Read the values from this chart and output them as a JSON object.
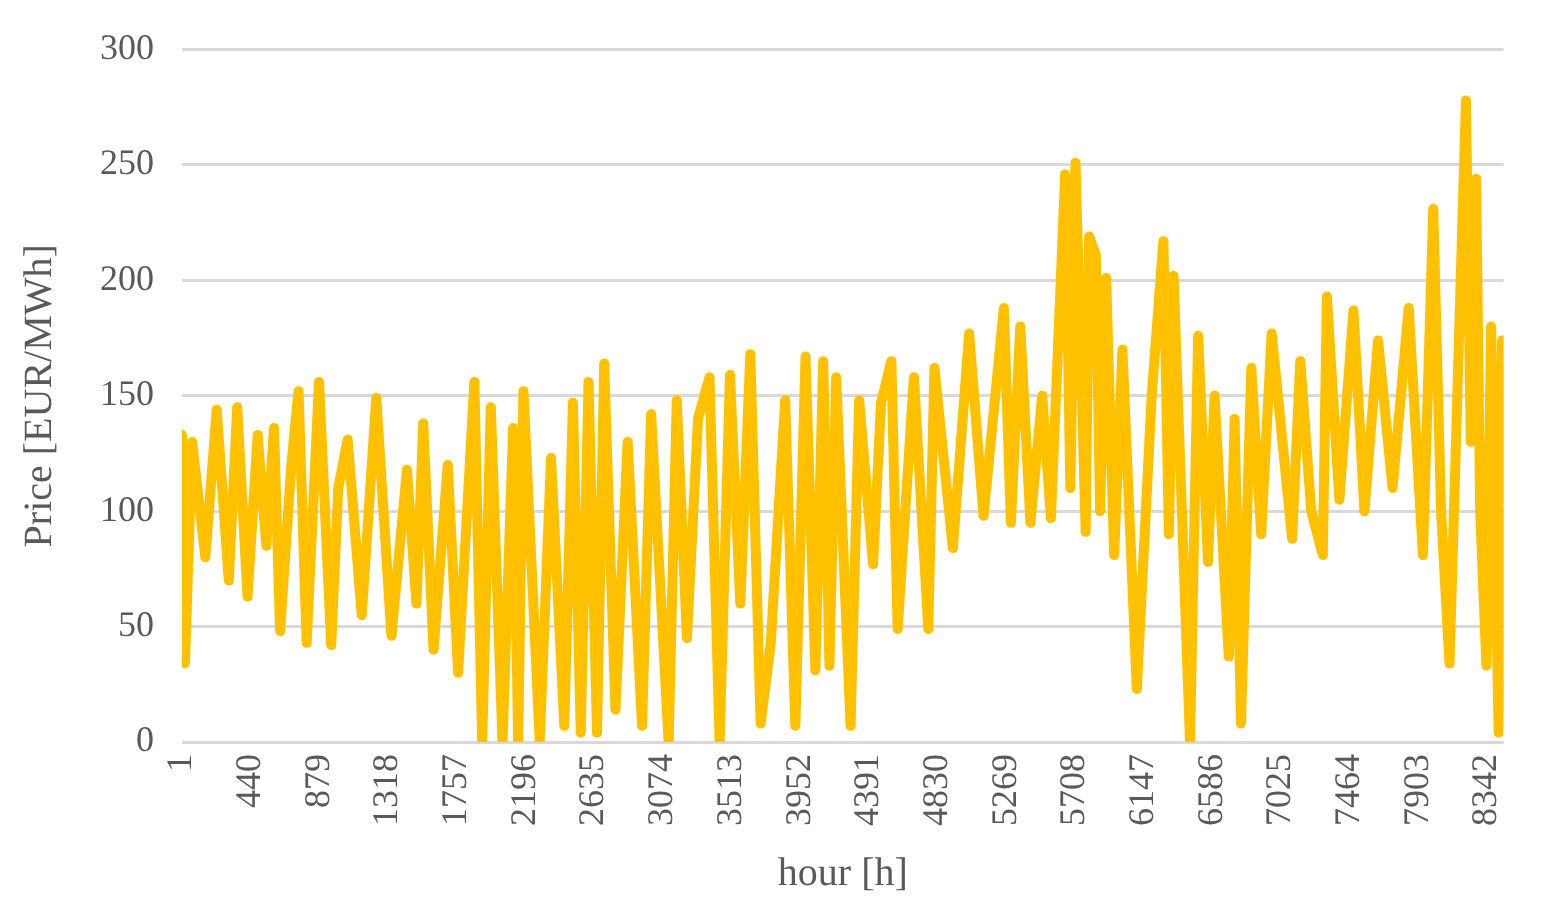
{
  "chart_data": {
    "type": "line",
    "xlabel": "hour [h]",
    "ylabel": "Price [EUR/MWh]",
    "xlim": [
      1,
      8450
    ],
    "xticks": [
      1,
      440,
      879,
      1318,
      1757,
      2196,
      2635,
      3074,
      3513,
      3952,
      4391,
      4830,
      5269,
      5708,
      6147,
      6586,
      7025,
      7464,
      7903,
      8342
    ],
    "ylim": [
      0,
      300
    ],
    "yticks": [
      0,
      50,
      100,
      150,
      200,
      250,
      300
    ],
    "grid": "y",
    "legend": false,
    "marker": "none",
    "line_style": "solid",
    "series": [
      {
        "color": "#ffc000",
        "x": [
          1,
          20,
          66,
          150,
          223,
          300,
          354,
          420,
          485,
          540,
          589,
          628,
          700,
          746,
          798,
          877,
          955,
          1000,
          1060,
          1150,
          1243,
          1340,
          1439,
          1500,
          1543,
          1609,
          1700,
          1766,
          1870,
          1920,
          1975,
          2050,
          2118,
          2150,
          2184,
          2288,
          2360,
          2445,
          2500,
          2550,
          2600,
          2654,
          2700,
          2772,
          2850,
          2942,
          3000,
          3112,
          3164,
          3229,
          3300,
          3373,
          3438,
          3504,
          3570,
          3634,
          3700,
          3765,
          3857,
          3922,
          3987,
          4050,
          4100,
          4140,
          4183,
          4275,
          4330,
          4419,
          4470,
          4536,
          4576,
          4680,
          4772,
          4811,
          4929,
          5033,
          5125,
          5255,
          5300,
          5360,
          5425,
          5500,
          5556,
          5647,
          5680,
          5713,
          5778,
          5800,
          5843,
          5870,
          5909,
          5960,
          6013,
          6105,
          6200,
          6275,
          6310,
          6340,
          6445,
          6497,
          6560,
          6602,
          6693,
          6730,
          6771,
          6837,
          6900,
          6967,
          7098,
          7150,
          7220,
          7294,
          7320,
          7400,
          7490,
          7560,
          7647,
          7740,
          7843,
          7934,
          8000,
          8050,
          8104,
          8209,
          8240,
          8274,
          8300,
          8340,
          8370,
          8418,
          8440
        ],
        "values": [
          133,
          34,
          130,
          80,
          144,
          70,
          145,
          63,
          133,
          85,
          136,
          48,
          120,
          152,
          43,
          156,
          42,
          110,
          131,
          55,
          149,
          46,
          118,
          60,
          138,
          40,
          120,
          30,
          156,
          0,
          145,
          0,
          136,
          0,
          152,
          0,
          123,
          7,
          147,
          4,
          156,
          4,
          164,
          14,
          130,
          7,
          142,
          0,
          148,
          45,
          140,
          158,
          0,
          159,
          60,
          168,
          8,
          43,
          148,
          7,
          167,
          31,
          165,
          33,
          158,
          7,
          148,
          77,
          147,
          165,
          49,
          158,
          49,
          162,
          84,
          177,
          98,
          188,
          95,
          180,
          95,
          150,
          97,
          246,
          110,
          251,
          91,
          219,
          211,
          100,
          201,
          81,
          170,
          23,
          150,
          217,
          90,
          202,
          0,
          176,
          78,
          150,
          37,
          140,
          8,
          162,
          90,
          177,
          88,
          165,
          100,
          81,
          193,
          105,
          187,
          100,
          174,
          110,
          188,
          81,
          231,
          100,
          34,
          278,
          130,
          244,
          100,
          33,
          180,
          4,
          174
        ]
      }
    ]
  }
}
